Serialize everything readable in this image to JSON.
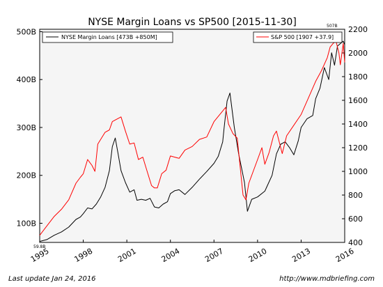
{
  "chart_data": {
    "type": "line",
    "title": "NYSE Margin Loans vs SP500  [2015-11-30]",
    "x_ticks": [
      "1995",
      "1998",
      "2001",
      "2004",
      "2007",
      "2010",
      "2013",
      "2016"
    ],
    "x_range": [
      1995.0,
      2016.0
    ],
    "y_left": {
      "ticks": [
        "100B",
        "200B",
        "300B",
        "400B",
        "500B"
      ],
      "range": [
        60,
        505
      ]
    },
    "y_right": {
      "ticks": [
        "400",
        "600",
        "800",
        "1000",
        "1200",
        "1400",
        "1600",
        "1800",
        "2000",
        "2200"
      ],
      "range": [
        400,
        2200
      ]
    },
    "annotations": {
      "left_min": "59.8B",
      "left_max": "507B"
    },
    "legend_left": {
      "position": "top-left",
      "label": "NYSE Margin Loans [473B +850M]"
    },
    "legend_right": {
      "position": "top-right",
      "label": "S&P 500 [1907 +37.9]"
    },
    "series": [
      {
        "name": "NYSE Margin Loans",
        "axis": "left",
        "color": "#000000",
        "x": [
          1995.0,
          1995.5,
          1996.0,
          1996.5,
          1997.0,
          1997.5,
          1997.8,
          1998.0,
          1998.3,
          1998.6,
          1998.9,
          1999.2,
          1999.5,
          1999.8,
          2000.0,
          2000.2,
          2000.4,
          2000.6,
          2000.9,
          2001.2,
          2001.5,
          2001.7,
          2002.0,
          2002.3,
          2002.6,
          2002.9,
          2003.2,
          2003.5,
          2003.8,
          2004.0,
          2004.3,
          2004.6,
          2005.0,
          2005.5,
          2006.0,
          2006.5,
          2007.0,
          2007.3,
          2007.6,
          2007.7,
          2007.9,
          2008.1,
          2008.4,
          2008.7,
          2008.9,
          2009.1,
          2009.3,
          2009.6,
          2010.0,
          2010.5,
          2011.0,
          2011.3,
          2011.6,
          2011.9,
          2012.2,
          2012.5,
          2012.8,
          2013.0,
          2013.4,
          2013.8,
          2014.0,
          2014.3,
          2014.6,
          2014.9,
          2015.1,
          2015.3,
          2015.5,
          2015.7,
          2015.9,
          2016.0
        ],
        "values": [
          62,
          66,
          75,
          82,
          92,
          108,
          113,
          120,
          132,
          130,
          140,
          155,
          175,
          210,
          260,
          278,
          245,
          210,
          185,
          165,
          170,
          148,
          150,
          148,
          152,
          134,
          132,
          140,
          145,
          162,
          168,
          170,
          160,
          175,
          192,
          208,
          225,
          240,
          270,
          300,
          355,
          372,
          300,
          245,
          215,
          185,
          125,
          150,
          155,
          167,
          200,
          245,
          265,
          270,
          258,
          243,
          272,
          300,
          318,
          325,
          360,
          382,
          425,
          400,
          456,
          430,
          470,
          475,
          480,
          473
        ]
      },
      {
        "name": "S&P 500",
        "axis": "right",
        "color": "#ff0000",
        "x": [
          1995.0,
          1995.5,
          1996.0,
          1996.5,
          1997.0,
          1997.5,
          1997.8,
          1998.0,
          1998.3,
          1998.6,
          1998.8,
          1999.0,
          1999.5,
          1999.8,
          2000.0,
          2000.3,
          2000.6,
          2000.9,
          2001.2,
          2001.5,
          2001.8,
          2002.1,
          2002.4,
          2002.7,
          2002.9,
          2003.1,
          2003.4,
          2003.7,
          2004.0,
          2004.3,
          2004.6,
          2005.0,
          2005.5,
          2006.0,
          2006.5,
          2007.0,
          2007.4,
          2007.8,
          2008.0,
          2008.3,
          2008.6,
          2008.9,
          2009.0,
          2009.2,
          2009.4,
          2009.7,
          2010.0,
          2010.3,
          2010.5,
          2010.8,
          2011.1,
          2011.3,
          2011.7,
          2012.0,
          2012.5,
          2013.0,
          2013.5,
          2014.0,
          2014.4,
          2014.8,
          2015.0,
          2015.2,
          2015.4,
          2015.6,
          2015.7,
          2015.9,
          2016.0
        ],
        "values": [
          460,
          540,
          620,
          680,
          760,
          900,
          950,
          980,
          1100,
          1050,
          1000,
          1230,
          1330,
          1350,
          1420,
          1440,
          1460,
          1340,
          1230,
          1240,
          1100,
          1120,
          1000,
          880,
          860,
          860,
          980,
          1010,
          1130,
          1120,
          1110,
          1180,
          1210,
          1270,
          1290,
          1420,
          1480,
          1540,
          1400,
          1320,
          1280,
          920,
          800,
          760,
          900,
          1000,
          1100,
          1200,
          1060,
          1160,
          1300,
          1340,
          1150,
          1300,
          1390,
          1480,
          1620,
          1760,
          1850,
          1960,
          2050,
          2080,
          2100,
          2000,
          1900,
          2080,
          1920
        ]
      }
    ]
  },
  "footer": {
    "left": "Last update Jan 24, 2016",
    "right": "http://www.mdbriefing.com"
  }
}
